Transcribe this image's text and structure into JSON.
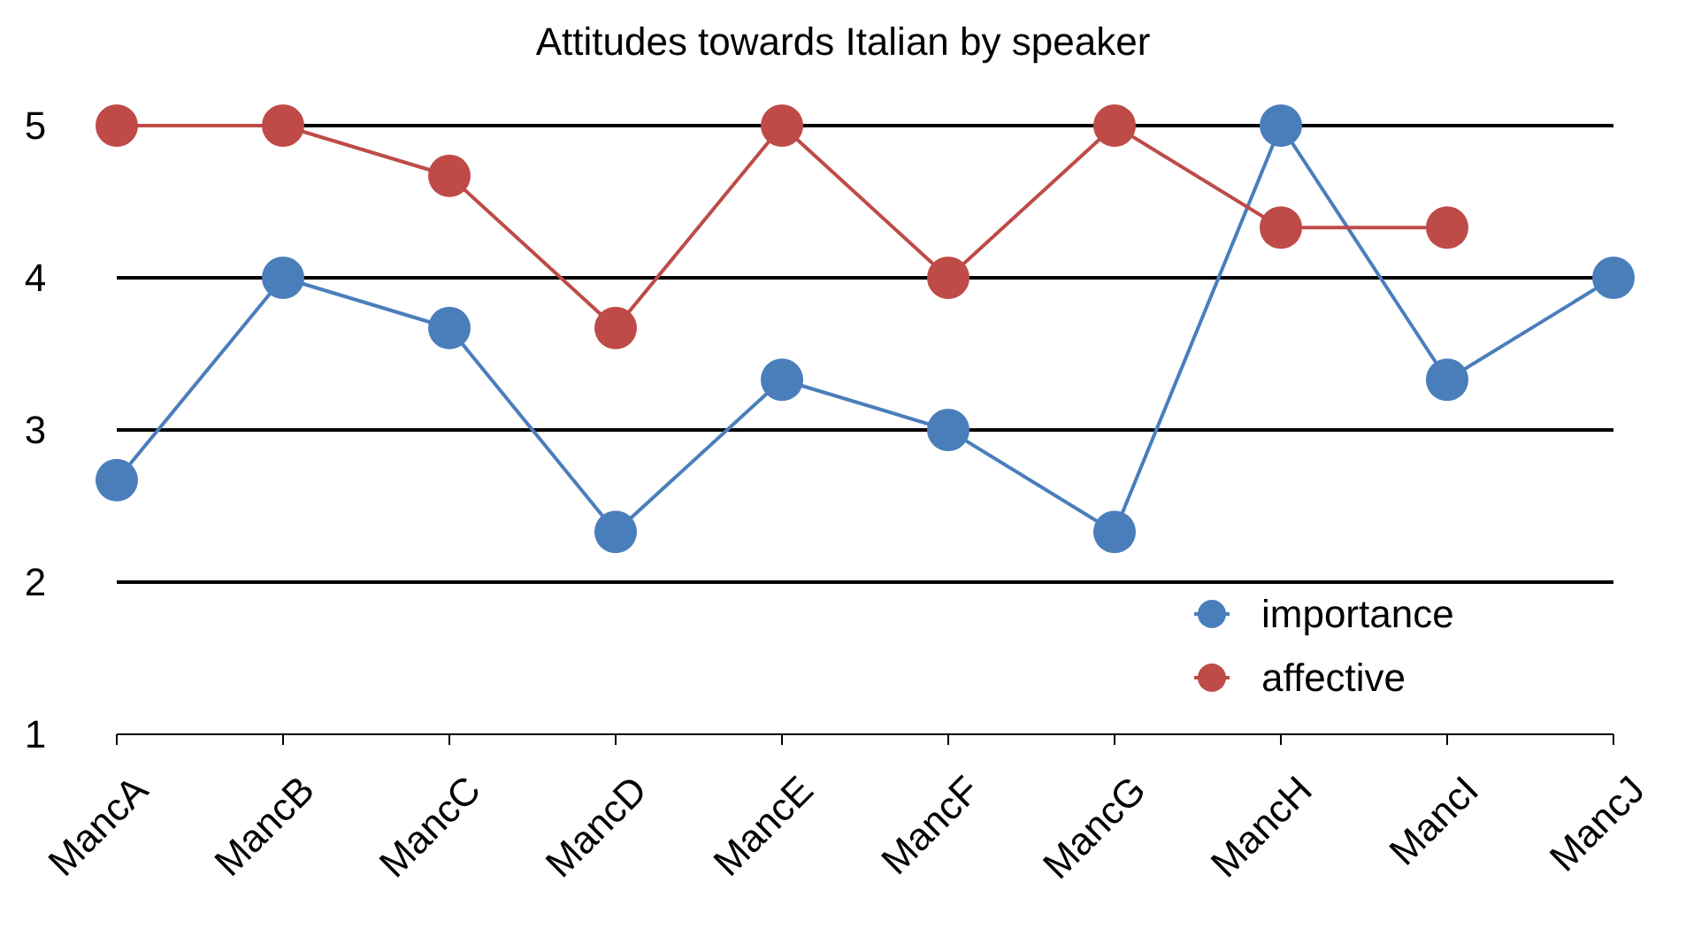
{
  "chart_data": {
    "type": "line",
    "title": "Attitudes towards Italian by speaker",
    "categories": [
      "MancA",
      "MancB",
      "MancC",
      "MancD",
      "MancE",
      "MancF",
      "MancG",
      "MancH",
      "MancI",
      "MancJ"
    ],
    "series": [
      {
        "name": "importance",
        "color": "#4a7ebb",
        "values": [
          2.67,
          4,
          3.67,
          2.33,
          3.33,
          3,
          2.33,
          5,
          3.33,
          4
        ]
      },
      {
        "name": "affective",
        "color": "#be4b48",
        "values": [
          5,
          5,
          4.67,
          3.67,
          5,
          4,
          5,
          4.33,
          4.33,
          null
        ]
      }
    ],
    "ylim": [
      1,
      5
    ],
    "yticks": [
      1,
      2,
      3,
      4,
      5
    ],
    "grid": "y",
    "legend": "bottom right",
    "marker": "circle",
    "line_style": "solid"
  }
}
